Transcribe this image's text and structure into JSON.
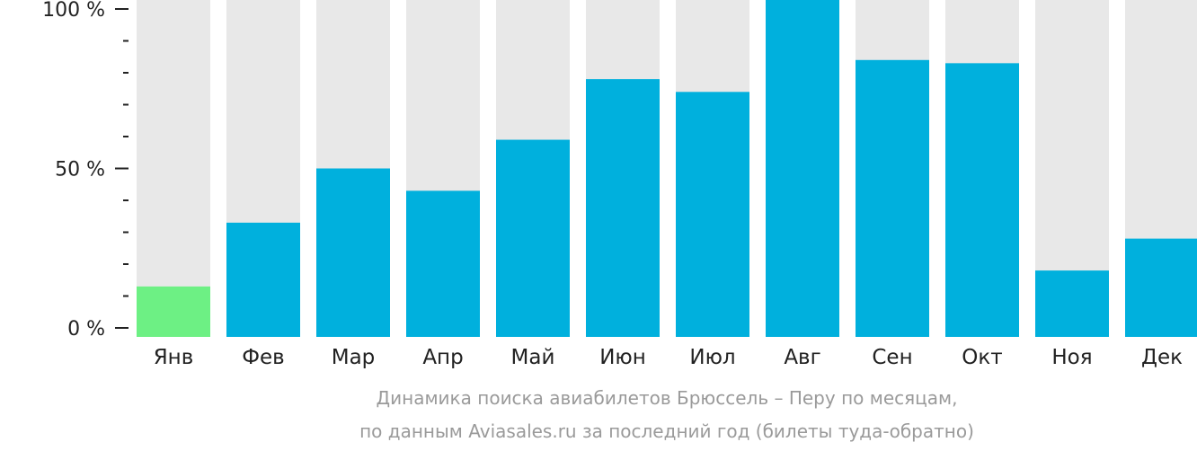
{
  "chart_data": {
    "type": "bar",
    "categories": [
      "Янв",
      "Фев",
      "Мар",
      "Апр",
      "Май",
      "Июн",
      "Июл",
      "Авг",
      "Сен",
      "Окт",
      "Ноя",
      "Дек"
    ],
    "values": [
      13,
      33,
      50,
      43,
      59,
      78,
      74,
      106,
      84,
      83,
      18,
      28
    ],
    "highlight_index": 0,
    "ylim": [
      0,
      100
    ],
    "y_ticks": [
      {
        "value": 0,
        "label": "0 %"
      },
      {
        "value": 50,
        "label": "50 %"
      },
      {
        "value": 100,
        "label": "100 %"
      }
    ],
    "y_minor_step": 10,
    "caption_line1": "Динамика поиска авиабилетов Брюссель – Перу по месяцам,",
    "caption_line2": "по данным Aviasales.ru за последний год (билеты туда-обратно)",
    "colors": {
      "bar": "#00b0dd",
      "highlight": "#6df084",
      "track": "#e8e8e8",
      "axis": "#222222",
      "caption": "#9a9a9a"
    }
  }
}
